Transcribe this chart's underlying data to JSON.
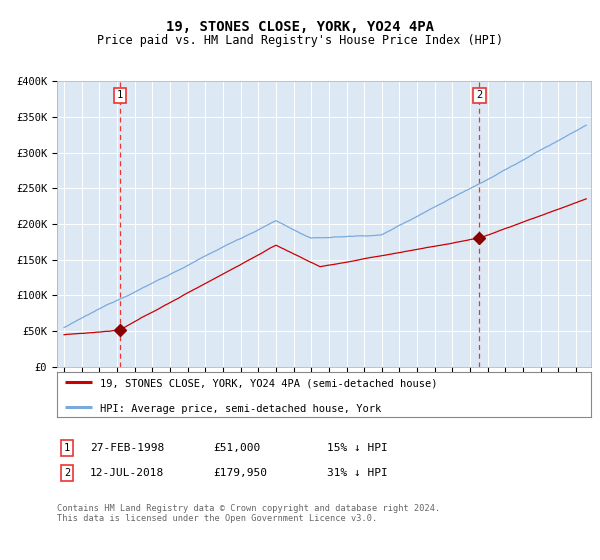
{
  "title": "19, STONES CLOSE, YORK, YO24 4PA",
  "subtitle": "Price paid vs. HM Land Registry's House Price Index (HPI)",
  "background_color": "#ffffff",
  "plot_bg_color": "#dce9f5",
  "hpi_line_color": "#7aaadd",
  "price_line_color": "#cc0000",
  "marker_color": "#880000",
  "dashed_line_color": "#ee3333",
  "legend_label_red": "19, STONES CLOSE, YORK, YO24 4PA (semi-detached house)",
  "legend_label_blue": "HPI: Average price, semi-detached house, York",
  "transaction1_date": "27-FEB-1998",
  "transaction1_price": "£51,000",
  "transaction1_hpi": "15% ↓ HPI",
  "transaction2_date": "12-JUL-2018",
  "transaction2_price": "£179,950",
  "transaction2_hpi": "31% ↓ HPI",
  "footnote": "Contains HM Land Registry data © Crown copyright and database right 2024.\nThis data is licensed under the Open Government Licence v3.0.",
  "ylim": [
    0,
    400000
  ],
  "yticks": [
    0,
    50000,
    100000,
    150000,
    200000,
    250000,
    300000,
    350000,
    400000
  ],
  "ytick_labels": [
    "£0",
    "£50K",
    "£100K",
    "£150K",
    "£200K",
    "£250K",
    "£300K",
    "£350K",
    "£400K"
  ],
  "year_start": 1995,
  "year_end": 2024,
  "transaction1_year": 1998.15,
  "transaction1_value": 51000,
  "transaction2_year": 2018.53,
  "transaction2_value": 179950
}
